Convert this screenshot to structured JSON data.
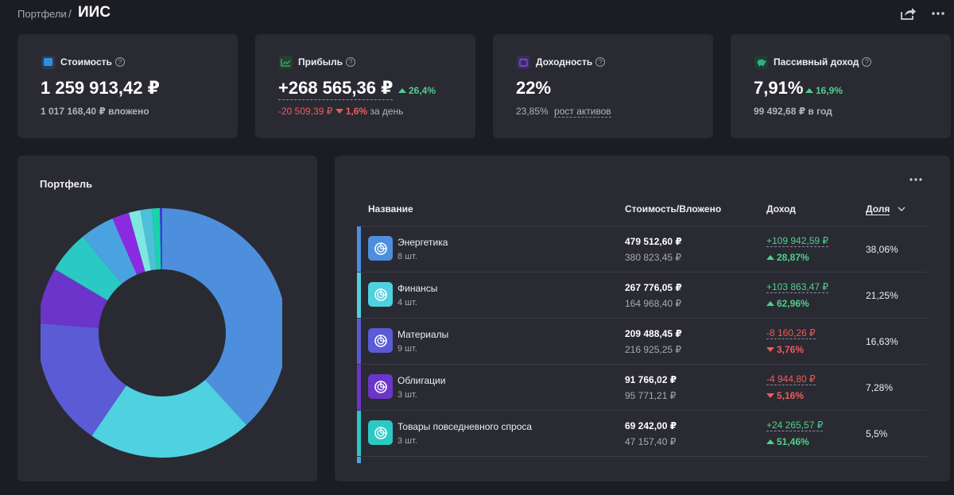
{
  "header": {
    "breadcrumb": "Портфели",
    "separator": "/",
    "title": "ИИС",
    "share_icon": "share-icon",
    "more_icon": "more-dots-icon"
  },
  "stats": [
    {
      "label": "Стоимость",
      "icon": "wallet-icon",
      "icon_color": "#2f8fe0",
      "value": "1 259 913,42 ₽",
      "sub": "1 017 168,40 ₽ вложено"
    },
    {
      "label": "Прибыль",
      "icon": "trend-chart-icon",
      "icon_color": "#3ca36b",
      "value": "+268 565,36 ₽",
      "delta": "26,4%",
      "day_change": "-20 509,39 ₽",
      "day_pct": "1,6%",
      "day_suffix": "за день"
    },
    {
      "label": "Доходность",
      "icon": "calendar-icon",
      "icon_color": "#7b4fe0",
      "value": "22%",
      "sub_value": "23,85%",
      "sub_link": "рост активов"
    },
    {
      "label": "Пассивный доход",
      "icon": "piggy-bank-icon",
      "icon_color": "#2fb37e",
      "value": "7,91%",
      "delta": "16,9%",
      "sub": "99 492,68 ₽ в год"
    }
  ],
  "portfolio_chart": {
    "title": "Портфель"
  },
  "chart_data": {
    "type": "pie",
    "donut": true,
    "title": "Портфель",
    "categories": [
      "Энергетика",
      "Финансы",
      "Материалы",
      "Облигации",
      "Товары повседневного спроса",
      "",
      "",
      "",
      "",
      "",
      ""
    ],
    "values": [
      38.06,
      21.25,
      16.63,
      7.28,
      5.5,
      4.4,
      2.2,
      1.5,
      1.5,
      1.0,
      0.3
    ],
    "colors": [
      "#4d8fdd",
      "#4fd1e0",
      "#5b5bd6",
      "#6a35c8",
      "#2bc9c4",
      "#4aa3e0",
      "#8a2be2",
      "#7ee8e0",
      "#4cc0d8",
      "#19d4a8",
      "#3b3be0"
    ]
  },
  "table": {
    "more_icon": "more-dots-icon",
    "columns": {
      "name": "Название",
      "value": "Стоимость/Вложено",
      "income": "Доход",
      "share": "Доля"
    },
    "rows": [
      {
        "name": "Энергетика",
        "count": "8 шт.",
        "color": "#4d8fdd",
        "icon": "sector-icon",
        "value": "479 512,60 ₽",
        "invested": "380 823,45 ₽",
        "income": "+109 942,59 ₽",
        "income_pct": "28,87%",
        "direction": "up",
        "share": "38,06%"
      },
      {
        "name": "Финансы",
        "count": "4 шт.",
        "color": "#4fd1e0",
        "icon": "sector-icon",
        "value": "267 776,05 ₽",
        "invested": "164 968,40 ₽",
        "income": "+103 863,47 ₽",
        "income_pct": "62,96%",
        "direction": "up",
        "share": "21,25%"
      },
      {
        "name": "Материалы",
        "count": "9 шт.",
        "color": "#5b5bd6",
        "icon": "sector-icon",
        "value": "209 488,45 ₽",
        "invested": "216 925,25 ₽",
        "income": "-8 160,26 ₽",
        "income_pct": "3,76%",
        "direction": "down",
        "share": "16,63%"
      },
      {
        "name": "Облигации",
        "count": "3 шт.",
        "color": "#6a35c8",
        "icon": "sector-icon",
        "value": "91 766,02 ₽",
        "invested": "95 771,21 ₽",
        "income": "-4 944,80 ₽",
        "income_pct": "5,16%",
        "direction": "down",
        "share": "7,28%"
      },
      {
        "name": "Товары повседневного спроса",
        "count": "3 шт.",
        "color": "#2bc9c4",
        "icon": "sector-icon",
        "value": "69 242,00 ₽",
        "invested": "47 157,40 ₽",
        "income": "+24 265,57 ₽",
        "income_pct": "51,46%",
        "direction": "up",
        "share": "5,5%"
      }
    ],
    "next_row_color": "#4aa3e0"
  }
}
